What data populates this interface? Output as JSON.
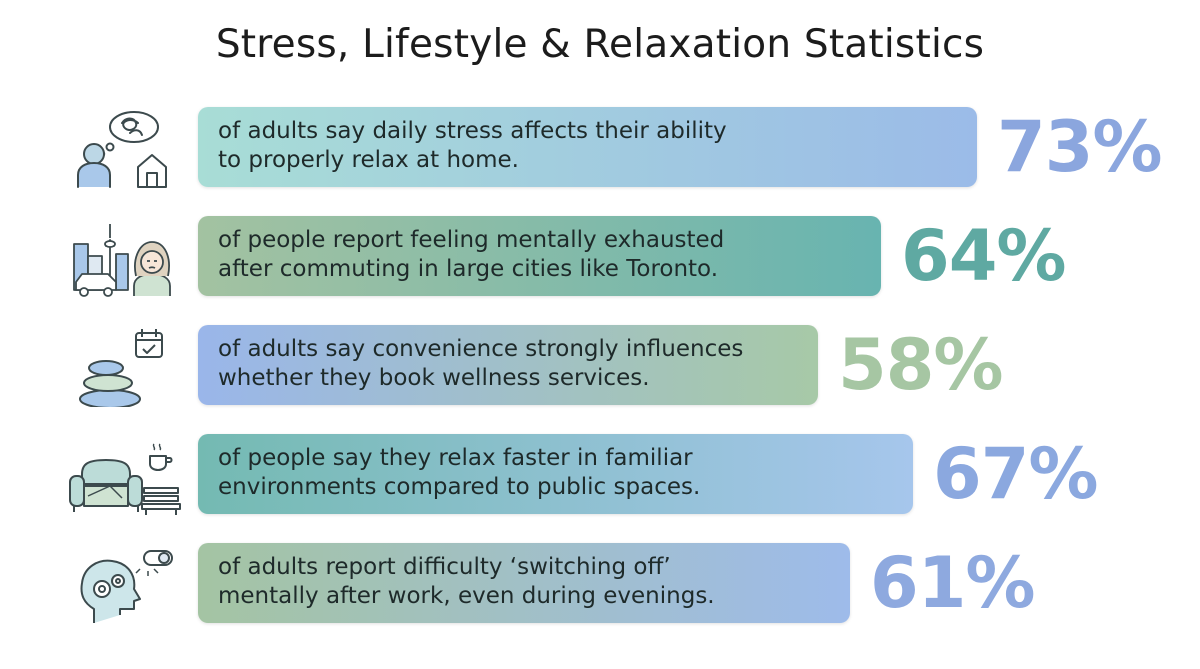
{
  "title": "Stress, Lifestyle & Relaxation Statistics",
  "chart_data": {
    "type": "bar",
    "orientation": "horizontal",
    "title": "Stress, Lifestyle & Relaxation Statistics",
    "unit": "%",
    "xlim": [
      0,
      100
    ],
    "rows": [
      {
        "value": 73,
        "label": "73%",
        "line1": "of adults say daily stress affects their ability",
        "line2": "to properly relax at home.",
        "icon": "person-thinking-home-icon",
        "gradient": [
          "#a8ddd6",
          "#9bbbe8"
        ],
        "value_color": "#8ba6de"
      },
      {
        "value": 64,
        "label": "64%",
        "line1": "of people report feeling mentally exhausted",
        "line2": "after commuting in large cities like Toronto.",
        "icon": "city-commute-tired-person-icon",
        "gradient": [
          "#a3c2a1",
          "#68b4b0"
        ],
        "value_color": "#5fa9a2"
      },
      {
        "value": 58,
        "label": "58%",
        "line1": "of adults say convenience strongly influences",
        "line2": "whether they book wellness services.",
        "icon": "spa-stones-calendar-icon",
        "gradient": [
          "#9ab6ea",
          "#a7c9a7"
        ],
        "value_color": "#a6c6a3"
      },
      {
        "value": 67,
        "label": "67%",
        "line1": "of people say they relax faster in familiar",
        "line2": "environments compared to public spaces.",
        "icon": "armchair-coffee-bench-icon",
        "gradient": [
          "#74bab2",
          "#a6c6ec"
        ],
        "value_color": "#8ba8df"
      },
      {
        "value": 61,
        "label": "61%",
        "line1": "of adults report difficulty ‘switching off’",
        "line2": "mentally after work, even during evenings.",
        "icon": "head-gears-switch-icon",
        "gradient": [
          "#a4c4a3",
          "#9ebbea"
        ],
        "value_color": "#8ea9df"
      }
    ]
  }
}
